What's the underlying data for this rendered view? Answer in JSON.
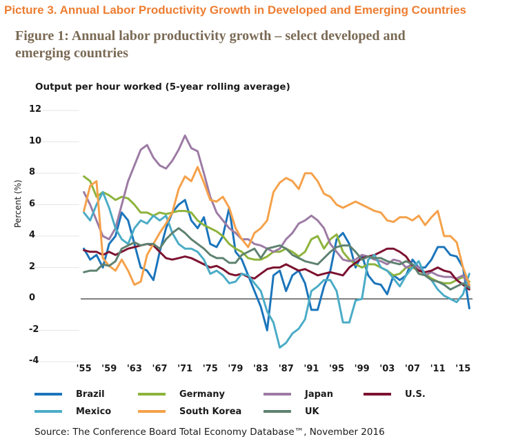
{
  "picture_title": "Picture 3. Annual Labor Productivity Growth in Developed and Emerging Countries",
  "figure_title": "Figure 1: Annual labor productivity growth – select developed and emerging countries",
  "subtitle": "Output per hour worked (5-year rolling average)",
  "source": "Source: The Conference Board Total Economy Database™, November 2016",
  "chart_data": {
    "type": "line",
    "ylabel": "Percent (%)",
    "xlabel": "",
    "xlim": [
      1954.5,
      2016.5
    ],
    "ylim": [
      -4,
      12
    ],
    "y_ticks": [
      "12",
      "10",
      "8",
      "6",
      "4",
      "2",
      "0",
      "-2",
      "-4"
    ],
    "x_ticks": [
      "'55",
      "'59",
      "'63",
      "'67",
      "'71",
      "'75",
      "'79",
      "'83",
      "'87",
      "'91",
      "'95",
      "'99",
      "'03",
      "'07",
      "'11",
      "'15"
    ],
    "legend_position": "bottom",
    "x": [
      1955,
      1956,
      1957,
      1958,
      1959,
      1960,
      1961,
      1962,
      1963,
      1964,
      1965,
      1966,
      1967,
      1968,
      1969,
      1970,
      1971,
      1972,
      1973,
      1974,
      1975,
      1976,
      1977,
      1978,
      1979,
      1980,
      1981,
      1982,
      1983,
      1984,
      1985,
      1986,
      1987,
      1988,
      1989,
      1990,
      1991,
      1992,
      1993,
      1994,
      1995,
      1996,
      1997,
      1998,
      1999,
      2000,
      2001,
      2002,
      2003,
      2004,
      2005,
      2006,
      2007,
      2008,
      2009,
      2010,
      2011,
      2012,
      2013,
      2014,
      2015,
      2016
    ],
    "series": [
      {
        "name": "Brazil",
        "color": "#1B75BB",
        "values": [
          3.2,
          2.5,
          2.8,
          2.0,
          3.5,
          4.0,
          5.5,
          5.0,
          3.5,
          2.0,
          1.8,
          1.2,
          3.0,
          4.5,
          5.5,
          6.0,
          6.3,
          5.0,
          4.5,
          5.2,
          3.5,
          3.3,
          4.0,
          5.8,
          3.0,
          2.5,
          1.5,
          0.5,
          -0.5,
          -2.0,
          1.5,
          1.8,
          0.5,
          1.5,
          1.8,
          1.0,
          -0.7,
          -0.7,
          0.8,
          1.8,
          3.8,
          4.2,
          3.5,
          2.0,
          2.8,
          1.5,
          1.0,
          0.9,
          0.3,
          1.5,
          1.2,
          1.5,
          2.5,
          2.0,
          2.0,
          2.5,
          3.3,
          3.3,
          2.8,
          2.7,
          2.0,
          -0.6
        ]
      },
      {
        "name": "Germany",
        "color": "#8DB33C",
        "values": [
          7.8,
          7.5,
          6.5,
          6.8,
          6.6,
          6.3,
          6.5,
          6.4,
          6.0,
          5.5,
          5.5,
          5.3,
          5.5,
          5.4,
          5.5,
          5.6,
          5.6,
          5.5,
          5.0,
          4.7,
          4.5,
          4.3,
          4.0,
          3.5,
          3.2,
          3.0,
          2.6,
          2.5,
          2.5,
          2.7,
          3.0,
          3.0,
          3.2,
          3.0,
          2.7,
          3.0,
          3.8,
          4.0,
          3.2,
          3.8,
          4.1,
          3.0,
          2.5,
          2.2,
          2.0,
          2.2,
          2.2,
          2.0,
          1.8,
          1.5,
          1.6,
          2.0,
          2.0,
          1.8,
          1.6,
          1.3,
          1.1,
          1.0,
          1.0,
          1.2,
          1.4,
          1.1
        ]
      },
      {
        "name": "Japan",
        "color": "#9C7BA4",
        "values": [
          6.8,
          6.0,
          5.0,
          4.0,
          3.8,
          4.5,
          6.0,
          7.5,
          8.5,
          9.5,
          9.8,
          9.0,
          8.5,
          8.3,
          8.8,
          9.5,
          10.4,
          9.6,
          9.4,
          8.0,
          6.5,
          5.5,
          5.0,
          4.5,
          4.2,
          3.8,
          3.8,
          3.5,
          3.4,
          3.2,
          3.0,
          3.2,
          3.8,
          4.2,
          4.8,
          5.0,
          5.3,
          5.0,
          4.5,
          3.5,
          3.0,
          2.5,
          2.4,
          2.5,
          2.8,
          2.7,
          2.5,
          2.4,
          2.2,
          2.5,
          2.4,
          2.0,
          2.2,
          2.0,
          1.5,
          1.7,
          1.5,
          1.4,
          1.4,
          1.3,
          1.5,
          0.8
        ]
      },
      {
        "name": "U.S.",
        "color": "#7C1230",
        "values": [
          3.1,
          3.0,
          3.0,
          2.8,
          3.0,
          2.8,
          3.0,
          3.2,
          3.3,
          3.4,
          3.5,
          3.4,
          3.0,
          2.6,
          2.5,
          2.6,
          2.7,
          2.6,
          2.4,
          2.2,
          2.0,
          2.1,
          1.9,
          1.6,
          1.5,
          1.6,
          1.4,
          1.3,
          1.6,
          1.9,
          2.0,
          2.0,
          2.2,
          2.0,
          1.8,
          1.9,
          1.7,
          1.5,
          1.6,
          1.7,
          1.6,
          1.5,
          2.0,
          2.3,
          2.6,
          2.7,
          2.8,
          3.0,
          3.2,
          3.2,
          3.0,
          2.7,
          2.1,
          1.8,
          1.7,
          1.8,
          2.0,
          1.8,
          1.7,
          1.2,
          0.9,
          0.6
        ]
      },
      {
        "name": "Mexico",
        "color": "#4BACC6",
        "values": [
          5.5,
          5.0,
          6.0,
          6.8,
          5.8,
          4.5,
          3.8,
          3.5,
          4.5,
          5.0,
          4.8,
          5.3,
          5.0,
          5.3,
          4.2,
          3.5,
          3.2,
          3.2,
          3.0,
          2.5,
          1.6,
          1.8,
          1.5,
          1.0,
          1.1,
          1.6,
          1.5,
          1.0,
          0.5,
          -0.8,
          -1.5,
          -3.1,
          -2.8,
          -2.2,
          -1.9,
          -1.3,
          0.5,
          0.8,
          1.2,
          1.2,
          0.5,
          -1.5,
          -1.5,
          -0.1,
          0.0,
          2.5,
          2.8,
          2.0,
          1.8,
          1.3,
          0.8,
          1.5,
          2.0,
          2.4,
          1.5,
          1.2,
          0.6,
          0.2,
          0.0,
          -0.2,
          0.3,
          1.6
        ]
      },
      {
        "name": "South Korea",
        "color": "#F5A14A",
        "values": [
          5.6,
          7.2,
          7.5,
          2.6,
          2.1,
          1.8,
          2.5,
          1.8,
          0.9,
          1.1,
          2.8,
          3.5,
          4.2,
          4.8,
          5.5,
          7.0,
          7.8,
          7.5,
          8.4,
          7.4,
          6.3,
          6.2,
          6.5,
          5.8,
          4.5,
          3.8,
          3.3,
          4.2,
          4.5,
          5.0,
          6.8,
          7.4,
          7.7,
          7.5,
          7.0,
          8.0,
          8.0,
          7.5,
          6.7,
          6.5,
          6.0,
          5.8,
          6.0,
          6.2,
          6.0,
          5.8,
          5.6,
          5.5,
          5.0,
          4.9,
          5.2,
          5.2,
          5.0,
          5.3,
          4.7,
          5.2,
          5.6,
          4.0,
          4.0,
          3.6,
          2.0,
          0.9
        ]
      },
      {
        "name": "UK",
        "color": "#5E8270",
        "values": [
          1.7,
          1.8,
          1.8,
          2.2,
          2.1,
          2.4,
          3.2,
          3.4,
          3.6,
          3.4,
          3.5,
          3.5,
          3.2,
          3.8,
          4.2,
          4.5,
          4.2,
          3.8,
          3.5,
          3.2,
          2.8,
          2.6,
          2.6,
          2.3,
          2.3,
          2.8,
          3.0,
          3.2,
          2.6,
          3.2,
          3.3,
          3.4,
          3.2,
          2.8,
          2.6,
          2.4,
          2.3,
          2.2,
          2.6,
          3.0,
          3.3,
          3.4,
          3.4,
          3.0,
          2.5,
          2.7,
          2.6,
          2.6,
          2.4,
          2.3,
          2.2,
          2.4,
          2.2,
          1.6,
          1.5,
          1.2,
          1.1,
          0.9,
          0.6,
          0.8,
          1.0,
          0.7
        ]
      }
    ]
  }
}
